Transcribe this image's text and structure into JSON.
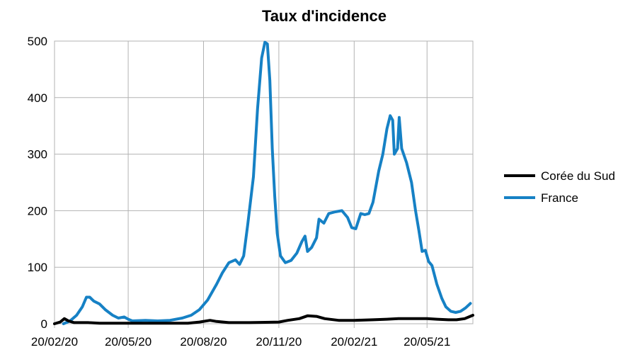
{
  "chart_data": {
    "type": "line",
    "title": "Taux d'incidence",
    "xlabel": "",
    "ylabel": "",
    "ylim": [
      0,
      500
    ],
    "yticks": [
      0,
      100,
      200,
      300,
      400,
      500
    ],
    "xlim": [
      "2020-02-20",
      "2021-07-15"
    ],
    "xticks": [
      {
        "date": "2020-02-20",
        "label": "20/02/20"
      },
      {
        "date": "2020-05-20",
        "label": "20/05/20"
      },
      {
        "date": "2020-08-20",
        "label": "20/08/20"
      },
      {
        "date": "2020-11-20",
        "label": "20/11/20"
      },
      {
        "date": "2021-02-20",
        "label": "20/02/21"
      },
      {
        "date": "2021-05-20",
        "label": "20/05/21"
      }
    ],
    "grid": true,
    "legend_position": "right",
    "series": [
      {
        "name": "Corée du Sud",
        "color": "#000000",
        "points": [
          [
            "2020-02-20",
            0
          ],
          [
            "2020-02-27",
            3
          ],
          [
            "2020-03-03",
            9
          ],
          [
            "2020-03-08",
            5
          ],
          [
            "2020-03-15",
            2
          ],
          [
            "2020-04-01",
            2
          ],
          [
            "2020-04-15",
            1
          ],
          [
            "2020-05-01",
            1
          ],
          [
            "2020-06-01",
            1
          ],
          [
            "2020-07-01",
            1
          ],
          [
            "2020-08-01",
            1
          ],
          [
            "2020-08-15",
            3
          ],
          [
            "2020-08-28",
            6
          ],
          [
            "2020-09-05",
            4
          ],
          [
            "2020-09-20",
            2
          ],
          [
            "2020-10-15",
            2
          ],
          [
            "2020-11-20",
            3
          ],
          [
            "2020-12-01",
            6
          ],
          [
            "2020-12-15",
            9
          ],
          [
            "2020-12-25",
            14
          ],
          [
            "2021-01-05",
            13
          ],
          [
            "2021-01-15",
            9
          ],
          [
            "2021-02-01",
            6
          ],
          [
            "2021-02-20",
            6
          ],
          [
            "2021-03-15",
            7
          ],
          [
            "2021-04-01",
            8
          ],
          [
            "2021-04-15",
            9
          ],
          [
            "2021-05-01",
            9
          ],
          [
            "2021-05-20",
            9
          ],
          [
            "2021-06-01",
            8
          ],
          [
            "2021-06-15",
            7
          ],
          [
            "2021-06-25",
            7
          ],
          [
            "2021-07-05",
            9
          ],
          [
            "2021-07-15",
            15
          ]
        ]
      },
      {
        "name": "France",
        "color": "#1681c5",
        "points": [
          [
            "2020-03-02",
            0
          ],
          [
            "2020-03-10",
            5
          ],
          [
            "2020-03-18",
            15
          ],
          [
            "2020-03-25",
            30
          ],
          [
            "2020-03-30",
            47
          ],
          [
            "2020-04-03",
            47
          ],
          [
            "2020-04-08",
            40
          ],
          [
            "2020-04-15",
            35
          ],
          [
            "2020-04-22",
            25
          ],
          [
            "2020-05-01",
            15
          ],
          [
            "2020-05-08",
            10
          ],
          [
            "2020-05-15",
            12
          ],
          [
            "2020-05-20",
            8
          ],
          [
            "2020-05-25",
            5
          ],
          [
            "2020-06-10",
            6
          ],
          [
            "2020-06-25",
            5
          ],
          [
            "2020-07-10",
            6
          ],
          [
            "2020-07-25",
            10
          ],
          [
            "2020-08-05",
            15
          ],
          [
            "2020-08-15",
            25
          ],
          [
            "2020-08-25",
            42
          ],
          [
            "2020-09-05",
            70
          ],
          [
            "2020-09-12",
            90
          ],
          [
            "2020-09-20",
            108
          ],
          [
            "2020-09-28",
            113
          ],
          [
            "2020-10-03",
            105
          ],
          [
            "2020-10-08",
            120
          ],
          [
            "2020-10-13",
            175
          ],
          [
            "2020-10-20",
            260
          ],
          [
            "2020-10-25",
            380
          ],
          [
            "2020-10-30",
            470
          ],
          [
            "2020-11-03",
            498
          ],
          [
            "2020-11-06",
            495
          ],
          [
            "2020-11-09",
            430
          ],
          [
            "2020-11-12",
            310
          ],
          [
            "2020-11-15",
            225
          ],
          [
            "2020-11-18",
            160
          ],
          [
            "2020-11-22",
            120
          ],
          [
            "2020-11-28",
            108
          ],
          [
            "2020-12-05",
            112
          ],
          [
            "2020-12-12",
            125
          ],
          [
            "2020-12-18",
            145
          ],
          [
            "2020-12-22",
            155
          ],
          [
            "2020-12-25",
            128
          ],
          [
            "2020-12-30",
            135
          ],
          [
            "2021-01-05",
            152
          ],
          [
            "2021-01-08",
            185
          ],
          [
            "2021-01-14",
            178
          ],
          [
            "2021-01-20",
            195
          ],
          [
            "2021-01-28",
            198
          ],
          [
            "2021-02-05",
            200
          ],
          [
            "2021-02-12",
            188
          ],
          [
            "2021-02-17",
            170
          ],
          [
            "2021-02-22",
            168
          ],
          [
            "2021-02-28",
            195
          ],
          [
            "2021-03-05",
            193
          ],
          [
            "2021-03-10",
            195
          ],
          [
            "2021-03-15",
            215
          ],
          [
            "2021-03-22",
            270
          ],
          [
            "2021-03-27",
            300
          ],
          [
            "2021-04-01",
            345
          ],
          [
            "2021-04-05",
            368
          ],
          [
            "2021-04-08",
            360
          ],
          [
            "2021-04-10",
            300
          ],
          [
            "2021-04-14",
            310
          ],
          [
            "2021-04-16",
            365
          ],
          [
            "2021-04-19",
            310
          ],
          [
            "2021-04-25",
            285
          ],
          [
            "2021-05-01",
            250
          ],
          [
            "2021-05-06",
            200
          ],
          [
            "2021-05-10",
            165
          ],
          [
            "2021-05-14",
            128
          ],
          [
            "2021-05-18",
            130
          ],
          [
            "2021-05-22",
            110
          ],
          [
            "2021-05-26",
            103
          ],
          [
            "2021-06-01",
            70
          ],
          [
            "2021-06-07",
            45
          ],
          [
            "2021-06-12",
            30
          ],
          [
            "2021-06-18",
            22
          ],
          [
            "2021-06-24",
            20
          ],
          [
            "2021-06-30",
            22
          ],
          [
            "2021-07-06",
            28
          ],
          [
            "2021-07-12",
            36
          ]
        ]
      }
    ]
  }
}
